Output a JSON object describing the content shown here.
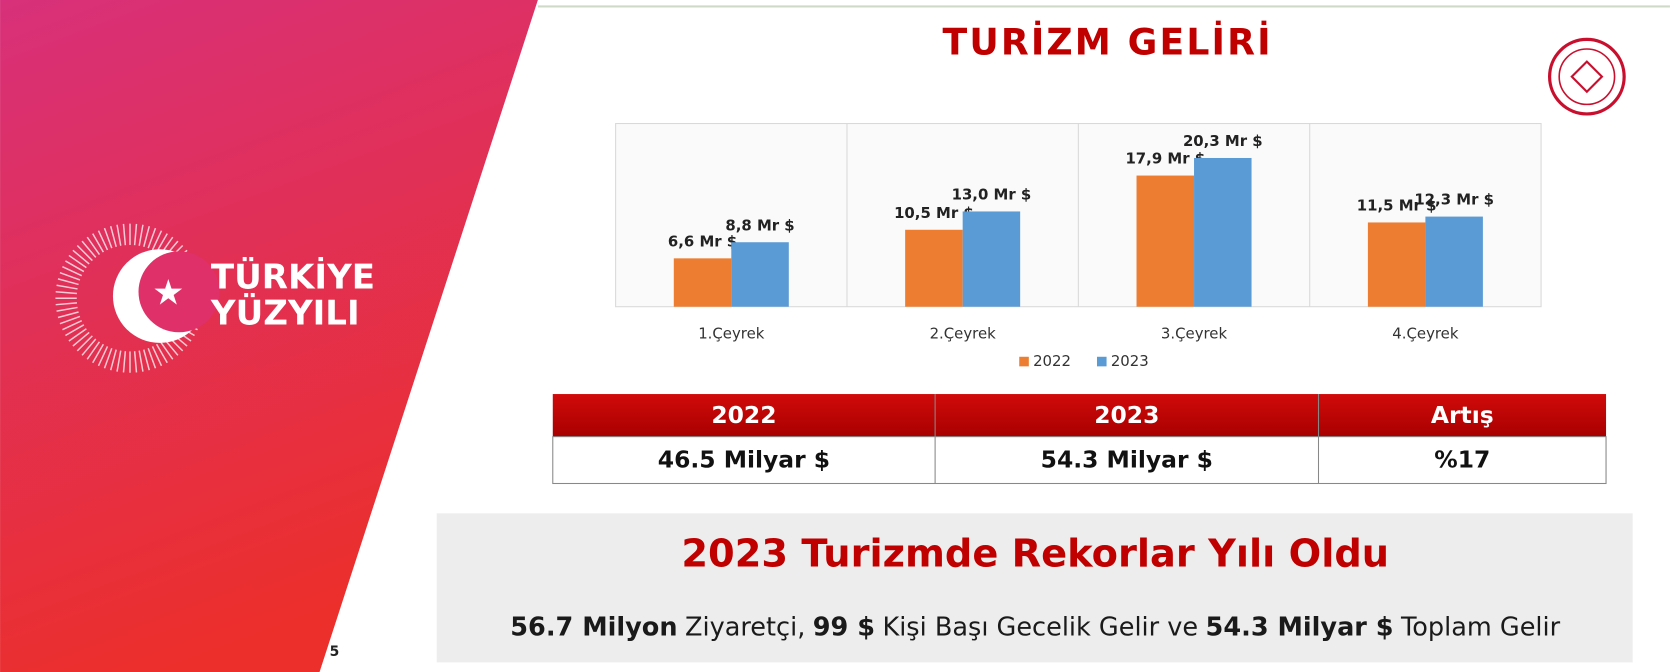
{
  "logo": {
    "line1": "TÜRKİYE",
    "line2": "YÜZYILI"
  },
  "page_number": "5",
  "chart_data": {
    "type": "bar",
    "title": "TURİZM GELİRİ",
    "categories": [
      "1.Çeyrek",
      "2.Çeyrek",
      "3.Çeyrek",
      "4.Çeyrek"
    ],
    "series": [
      {
        "name": "2022",
        "color": "#ed7d31",
        "values": [
          6.6,
          10.5,
          17.9,
          11.5
        ],
        "value_labels": [
          "6,6 Mr $",
          "10,5 Mr $",
          "17,9 Mr $",
          "11,5 Mr $"
        ]
      },
      {
        "name": "2023",
        "color": "#5b9bd5",
        "values": [
          8.8,
          13.0,
          20.3,
          12.3
        ],
        "value_labels": [
          "8,8 Mr $",
          "13,0 Mr $",
          "20,3 Mr $",
          "12,3 Mr $"
        ]
      }
    ],
    "ylim": [
      0,
      25
    ],
    "legend": "bottom"
  },
  "table": {
    "header": [
      "2022",
      "2023",
      "Artış"
    ],
    "rows": [
      [
        "46.5 Milyar $",
        "54.3 Milyar $",
        "%17"
      ]
    ]
  },
  "banner": {
    "headline": "2023 Turizmde Rekorlar Yılı Oldu",
    "subline": [
      {
        "text": "56.7 Milyon",
        "bold": true
      },
      {
        "text": "Ziyaretçi,",
        "bold": false
      },
      {
        "text": "99 $",
        "bold": true
      },
      {
        "text": "Kişi Başı Gecelik Gelir ve",
        "bold": false
      },
      {
        "text": "54.3 Milyar $",
        "bold": true
      },
      {
        "text": "Toplam Gelir",
        "bold": false
      }
    ]
  }
}
